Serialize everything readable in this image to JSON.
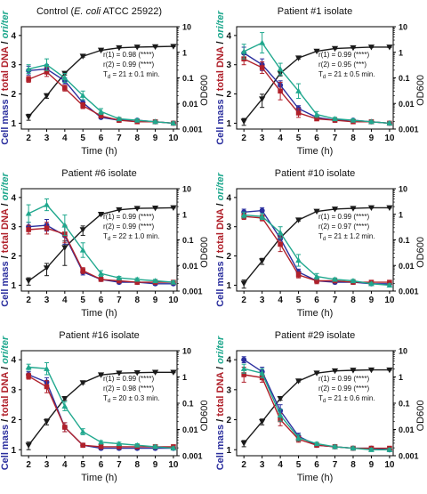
{
  "figure": {
    "colors": {
      "cell_mass": "#2b2f9e",
      "total_dna": "#b0202a",
      "ori_ter": "#20a88e",
      "od600": "#1a1a1a",
      "axis": "#000000"
    }
  },
  "chart_data": [
    {
      "type": "line",
      "title_parts": [
        "Control (",
        "E. coli",
        " ATCC 25922)"
      ],
      "xlabel": "Time (h)",
      "ylabel_left_parts": [
        "Cell mass",
        " / ",
        "total DNA",
        " / ",
        "ori/ter"
      ],
      "ylabel_right": "OD600",
      "x": [
        2,
        3,
        4,
        5,
        6,
        7,
        8,
        9,
        10
      ],
      "xlim": [
        1.6,
        10.2
      ],
      "xticks": [
        "2",
        "3",
        "4",
        "5",
        "6",
        "7",
        "8",
        "9",
        "10"
      ],
      "ylim_left": [
        0.8,
        4.3
      ],
      "yticks_left": [
        "1",
        "2",
        "3",
        "4"
      ],
      "ylim_right": [
        0.001,
        10
      ],
      "yscale_right": "log",
      "yticks_right": [
        "0.001",
        "0.01",
        "0.1",
        "1",
        "10"
      ],
      "series": [
        {
          "name": "Cell mass",
          "axis": "left",
          "values": [
            2.8,
            2.85,
            2.45,
            1.7,
            1.2,
            1.1,
            1.1,
            1.05,
            1.0
          ],
          "errors": [
            0.15,
            0.15,
            0.1,
            0.1,
            0.05,
            0.05,
            0.05,
            0.05,
            0.05
          ]
        },
        {
          "name": "total DNA",
          "axis": "left",
          "values": [
            2.5,
            2.75,
            2.2,
            1.6,
            1.25,
            1.1,
            1.05,
            1.05,
            1.0
          ],
          "errors": [
            0.1,
            0.15,
            0.1,
            0.1,
            0.05,
            0.05,
            0.05,
            0.05,
            0.05
          ]
        },
        {
          "name": "ori/ter",
          "axis": "left",
          "values": [
            2.85,
            3.0,
            2.55,
            1.95,
            1.4,
            1.15,
            1.1,
            1.05,
            1.0
          ],
          "errors": [
            0.15,
            0.2,
            0.15,
            0.15,
            0.1,
            0.05,
            0.05,
            0.05,
            0.05
          ]
        },
        {
          "name": "OD600",
          "axis": "right",
          "values": [
            0.003,
            0.02,
            0.15,
            0.7,
            1.2,
            1.5,
            1.6,
            1.65,
            1.7
          ],
          "errors": [
            0.0008,
            0.004,
            0.02,
            0.05,
            0.05,
            0.05,
            0.05,
            0.05,
            0.05
          ]
        }
      ],
      "annotations": {
        "r1": "r(1) = 0.98 (****)",
        "r2": "r(2) = 0.99 (****)",
        "td_rest": " = 21 ± 0.1 min."
      }
    },
    {
      "type": "line",
      "title_parts": [
        "Patient #1 isolate",
        "",
        ""
      ],
      "xlabel": "Time (h)",
      "ylabel_left_parts": [
        "Cell mass",
        " / ",
        "total DNA",
        " / ",
        "ori/ter"
      ],
      "ylabel_right": "OD600",
      "x": [
        2,
        3,
        4,
        5,
        6,
        7,
        8,
        9,
        10
      ],
      "xlim": [
        1.6,
        10.2
      ],
      "xticks": [
        "2",
        "3",
        "4",
        "5",
        "6",
        "7",
        "8",
        "9",
        "10"
      ],
      "ylim_left": [
        0.8,
        4.3
      ],
      "yticks_left": [
        "1",
        "2",
        "3",
        "4"
      ],
      "ylim_right": [
        0.001,
        10
      ],
      "yscale_right": "log",
      "yticks_right": [
        "0.001",
        "0.01",
        "0.1",
        "1",
        "10"
      ],
      "series": [
        {
          "name": "Cell mass",
          "axis": "left",
          "values": [
            3.4,
            3.0,
            2.3,
            1.5,
            1.2,
            1.1,
            1.1,
            1.05,
            1.0
          ],
          "errors": [
            0.2,
            0.2,
            0.15,
            0.1,
            0.05,
            0.05,
            0.05,
            0.05,
            0.05
          ]
        },
        {
          "name": "total DNA",
          "axis": "left",
          "values": [
            3.2,
            2.9,
            2.1,
            1.35,
            1.15,
            1.1,
            1.05,
            1.05,
            1.0
          ],
          "errors": [
            0.2,
            0.2,
            0.3,
            0.15,
            0.05,
            0.05,
            0.05,
            0.05,
            0.05
          ]
        },
        {
          "name": "ori/ter",
          "axis": "left",
          "values": [
            3.45,
            3.75,
            2.85,
            2.1,
            1.3,
            1.15,
            1.1,
            1.05,
            1.0
          ],
          "errors": [
            0.25,
            0.35,
            0.2,
            0.25,
            0.1,
            0.05,
            0.05,
            0.05,
            0.05
          ]
        },
        {
          "name": "OD600",
          "axis": "right",
          "values": [
            0.002,
            0.015,
            0.15,
            0.6,
            1.1,
            1.4,
            1.5,
            1.6,
            1.6
          ],
          "errors": [
            0.0006,
            0.008,
            0.03,
            0.05,
            0.05,
            0.05,
            0.05,
            0.05,
            0.05
          ]
        }
      ],
      "annotations": {
        "r1": "r(1) = 0.99 (****)",
        "r2": "r(2) = 0.95 (***)",
        "td_rest": " = 21 ± 0.5 min."
      }
    },
    {
      "type": "line",
      "title_parts": [
        "Patient #6 isolate",
        "",
        ""
      ],
      "xlabel": "Time (h)",
      "ylabel_left_parts": [
        "Cell mass",
        " / ",
        "total DNA",
        " / ",
        "ori/ter"
      ],
      "ylabel_right": "OD600",
      "x": [
        2,
        3,
        4,
        5,
        6,
        7,
        8,
        9,
        10
      ],
      "xlim": [
        1.6,
        10.2
      ],
      "xticks": [
        "2",
        "3",
        "4",
        "5",
        "6",
        "7",
        "8",
        "9",
        "10"
      ],
      "ylim_left": [
        0.8,
        4.3
      ],
      "yticks_left": [
        "1",
        "2",
        "3",
        "4"
      ],
      "ylim_right": [
        0.001,
        10
      ],
      "yscale_right": "log",
      "yticks_right": [
        "0.001",
        "0.01",
        "0.1",
        "1",
        "10"
      ],
      "series": [
        {
          "name": "Cell mass",
          "axis": "left",
          "values": [
            3.0,
            3.05,
            2.7,
            1.45,
            1.2,
            1.1,
            1.1,
            1.05,
            1.05
          ],
          "errors": [
            0.15,
            0.2,
            0.3,
            0.1,
            0.05,
            0.05,
            0.05,
            0.05,
            0.05
          ]
        },
        {
          "name": "total DNA",
          "axis": "left",
          "values": [
            2.9,
            2.95,
            2.75,
            1.5,
            1.2,
            1.15,
            1.1,
            1.1,
            1.1
          ],
          "errors": [
            0.15,
            0.2,
            0.3,
            0.1,
            0.05,
            0.05,
            0.05,
            0.05,
            0.05
          ]
        },
        {
          "name": "ori/ter",
          "axis": "left",
          "values": [
            3.45,
            3.75,
            3.05,
            2.2,
            1.4,
            1.25,
            1.2,
            1.15,
            1.1
          ],
          "errors": [
            0.3,
            0.2,
            0.35,
            0.25,
            0.1,
            0.05,
            0.05,
            0.05,
            0.05
          ]
        },
        {
          "name": "OD600",
          "axis": "right",
          "values": [
            0.0025,
            0.008,
            0.05,
            0.25,
            1.0,
            1.5,
            1.7,
            1.75,
            1.8
          ],
          "errors": [
            0.0008,
            0.004,
            0.04,
            0.1,
            0.05,
            0.05,
            0.05,
            0.05,
            0.05
          ]
        }
      ],
      "annotations": {
        "r1": "r(1) = 0.99 (****)",
        "r2": "r(2) = 0.99 (****)",
        "td_rest": " = 22 ± 1.0 min."
      }
    },
    {
      "type": "line",
      "title_parts": [
        "Patient #10 isolate",
        "",
        ""
      ],
      "xlabel": "Time (h)",
      "ylabel_left_parts": [
        "Cell mass",
        " / ",
        "total DNA",
        " / ",
        "ori/ter"
      ],
      "ylabel_right": "OD600",
      "x": [
        2,
        3,
        4,
        5,
        6,
        7,
        8,
        9,
        10
      ],
      "xlim": [
        1.6,
        10.2
      ],
      "xticks": [
        "2",
        "3",
        "4",
        "5",
        "6",
        "7",
        "8",
        "9",
        "10"
      ],
      "ylim_left": [
        0.8,
        4.3
      ],
      "yticks_left": [
        "1",
        "2",
        "3",
        "4"
      ],
      "ylim_right": [
        0.001,
        10
      ],
      "yscale_right": "log",
      "yticks_right": [
        "0.001",
        "0.01",
        "0.1",
        "1",
        "10"
      ],
      "series": [
        {
          "name": "Cell mass",
          "axis": "left",
          "values": [
            3.5,
            3.55,
            2.6,
            1.45,
            1.15,
            1.1,
            1.1,
            1.05,
            1.05
          ],
          "errors": [
            0.1,
            0.1,
            0.15,
            0.1,
            0.05,
            0.05,
            0.05,
            0.05,
            0.05
          ]
        },
        {
          "name": "total DNA",
          "axis": "left",
          "values": [
            3.35,
            3.3,
            2.4,
            1.35,
            1.15,
            1.15,
            1.1,
            1.1,
            1.1
          ],
          "errors": [
            0.1,
            0.1,
            0.25,
            0.1,
            0.1,
            0.05,
            0.05,
            0.05,
            0.05
          ]
        },
        {
          "name": "ori/ter",
          "axis": "left",
          "values": [
            3.4,
            3.35,
            2.8,
            1.85,
            1.3,
            1.2,
            1.15,
            1.05,
            1.0
          ],
          "errors": [
            0.1,
            0.1,
            0.2,
            0.2,
            0.1,
            0.05,
            0.05,
            0.05,
            0.05
          ]
        },
        {
          "name": "OD600",
          "axis": "right",
          "values": [
            0.002,
            0.015,
            0.12,
            0.6,
            1.3,
            1.6,
            1.7,
            1.8,
            1.8
          ],
          "errors": [
            0.0007,
            0.004,
            0.02,
            0.05,
            0.05,
            0.05,
            0.05,
            0.05,
            0.05
          ]
        }
      ],
      "annotations": {
        "r1": "r(1) = 0.99 (****)",
        "r2": "r(2) = 0.97 (****)",
        "td_rest": " = 21 ± 1.2 min."
      }
    },
    {
      "type": "line",
      "title_parts": [
        "Patient #16 isolate",
        "",
        ""
      ],
      "xlabel": "Time (h)",
      "ylabel_left_parts": [
        "Cell mass",
        " / ",
        "total DNA",
        " / ",
        "ori/ter"
      ],
      "ylabel_right": "OD600",
      "x": [
        2,
        3,
        4,
        5,
        6,
        7,
        8,
        9,
        10
      ],
      "xlim": [
        1.6,
        10.2
      ],
      "xticks": [
        "2",
        "3",
        "4",
        "5",
        "6",
        "7",
        "8",
        "9",
        "10"
      ],
      "ylim_left": [
        0.8,
        4.3
      ],
      "yticks_left": [
        "1",
        "2",
        "3",
        "4"
      ],
      "ylim_right": [
        0.001,
        10
      ],
      "yscale_right": "log",
      "yticks_right": [
        "0.001",
        "0.01",
        "0.1",
        "1",
        "10"
      ],
      "series": [
        {
          "name": "Cell mass",
          "axis": "left",
          "values": [
            3.5,
            3.25,
            1.75,
            1.15,
            1.05,
            1.05,
            1.05,
            1.05,
            1.05
          ],
          "errors": [
            0.1,
            0.15,
            0.15,
            0.05,
            0.05,
            0.05,
            0.05,
            0.05,
            0.05
          ]
        },
        {
          "name": "total DNA",
          "axis": "left",
          "values": [
            3.45,
            3.1,
            1.75,
            1.15,
            1.1,
            1.1,
            1.1,
            1.1,
            1.1
          ],
          "errors": [
            0.1,
            0.2,
            0.15,
            0.05,
            0.05,
            0.05,
            0.05,
            0.05,
            0.05
          ]
        },
        {
          "name": "ori/ter",
          "axis": "left",
          "values": [
            3.75,
            3.7,
            2.45,
            1.6,
            1.25,
            1.2,
            1.15,
            1.1,
            1.05
          ],
          "errors": [
            0.1,
            0.2,
            0.15,
            0.1,
            0.05,
            0.05,
            0.05,
            0.05,
            0.05
          ]
        },
        {
          "name": "OD600",
          "axis": "right",
          "values": [
            0.0025,
            0.02,
            0.15,
            0.6,
            1.2,
            1.4,
            1.45,
            1.5,
            1.5
          ],
          "errors": [
            0.0008,
            0.005,
            0.02,
            0.05,
            0.05,
            0.05,
            0.05,
            0.05,
            0.05
          ]
        }
      ],
      "annotations": {
        "r1": "r(1) = 0.99 (****)",
        "r2": "r(2) = 0.98 (****)",
        "td_rest": " = 20 ± 0.3 min."
      }
    },
    {
      "type": "line",
      "title_parts": [
        "Patient #29 isolate",
        "",
        ""
      ],
      "xlabel": "Time (h)",
      "ylabel_left_parts": [
        "Cell mass",
        " / ",
        "total DNA",
        " / ",
        "ori/ter"
      ],
      "ylabel_right": "OD600",
      "x": [
        2,
        3,
        4,
        5,
        6,
        7,
        8,
        9,
        10
      ],
      "xlim": [
        1.6,
        10.2
      ],
      "xticks": [
        "2",
        "3",
        "4",
        "5",
        "6",
        "7",
        "8",
        "9",
        "10"
      ],
      "ylim_left": [
        0.8,
        4.3
      ],
      "yticks_left": [
        "1",
        "2",
        "3",
        "4"
      ],
      "ylim_right": [
        0.001,
        10
      ],
      "yscale_right": "log",
      "yticks_right": [
        "0.001",
        "0.01",
        "0.1",
        "1",
        "10"
      ],
      "series": [
        {
          "name": "Cell mass",
          "axis": "left",
          "values": [
            4.0,
            3.6,
            2.3,
            1.45,
            1.15,
            1.1,
            1.05,
            1.05,
            1.0
          ],
          "errors": [
            0.1,
            0.15,
            0.2,
            0.1,
            0.05,
            0.05,
            0.05,
            0.05,
            0.05
          ]
        },
        {
          "name": "total DNA",
          "axis": "left",
          "values": [
            3.5,
            3.4,
            2.0,
            1.35,
            1.15,
            1.1,
            1.05,
            1.05,
            1.05
          ],
          "errors": [
            0.25,
            0.15,
            0.2,
            0.1,
            0.05,
            0.05,
            0.05,
            0.05,
            0.05
          ]
        },
        {
          "name": "ori/ter",
          "axis": "left",
          "values": [
            3.7,
            3.55,
            2.15,
            1.4,
            1.2,
            1.1,
            1.05,
            1.0,
            1.0
          ],
          "errors": [
            0.15,
            0.15,
            0.2,
            0.1,
            0.05,
            0.05,
            0.05,
            0.05,
            0.05
          ]
        },
        {
          "name": "OD600",
          "axis": "right",
          "values": [
            0.003,
            0.02,
            0.15,
            0.7,
            1.4,
            1.7,
            1.8,
            1.85,
            1.85
          ],
          "errors": [
            0.0008,
            0.005,
            0.02,
            0.05,
            0.05,
            0.05,
            0.05,
            0.05,
            0.05
          ]
        }
      ],
      "annotations": {
        "r1": "r(1) = 0.99 (****)",
        "r2": "r(2) = 0.99 (****)",
        "td_rest": " = 21 ± 0.6 min."
      }
    }
  ]
}
